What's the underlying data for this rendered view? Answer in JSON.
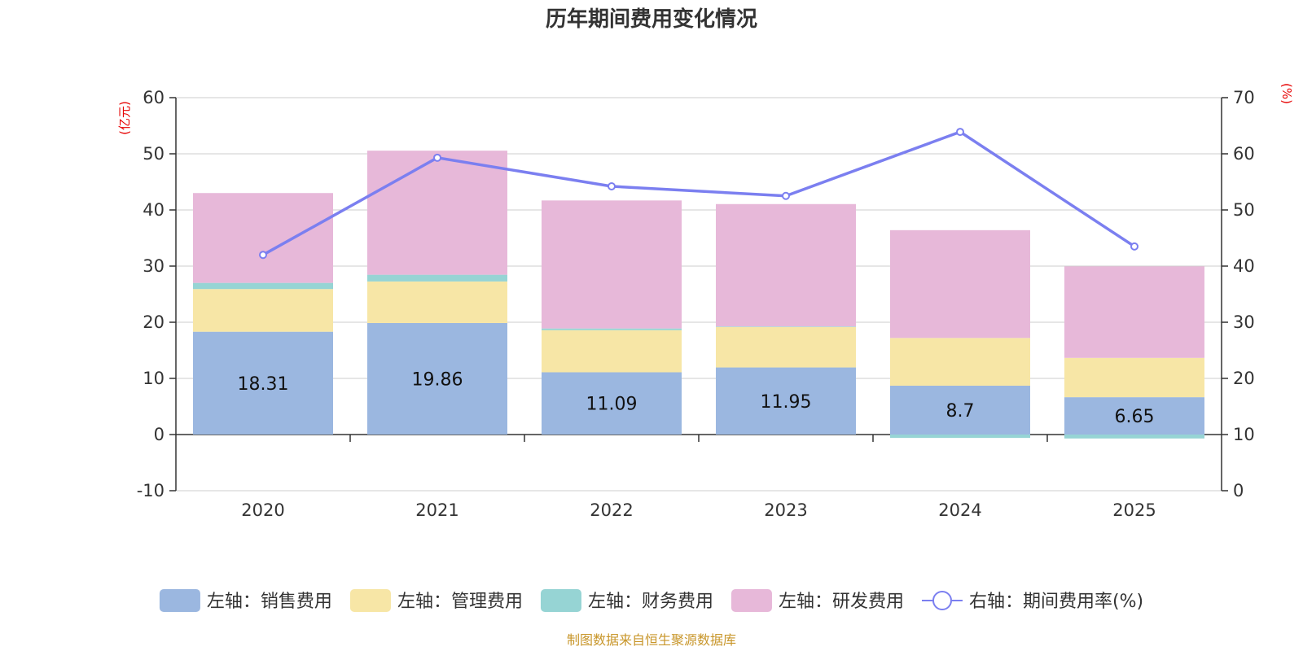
{
  "chart_data": {
    "type": "bar",
    "stacked": true,
    "title": "历年期间费用变化情况",
    "categories": [
      "2020",
      "2021",
      "2022",
      "2023",
      "2024",
      "2025"
    ],
    "left_axis": {
      "unit": "(亿元)",
      "ylim": [
        -10,
        60
      ],
      "ticks": [
        60,
        50,
        40,
        30,
        20,
        10,
        0,
        -10
      ]
    },
    "right_axis": {
      "unit": "(%)",
      "ylim": [
        0,
        70
      ],
      "ticks": [
        70,
        60,
        50,
        40,
        30,
        20,
        10,
        0
      ]
    },
    "series": [
      {
        "name": "左轴：销售费用",
        "color": "#9bb7e0",
        "axis": "left",
        "values": [
          18.31,
          19.86,
          11.09,
          11.95,
          8.7,
          6.65
        ],
        "show_labels": true
      },
      {
        "name": "左轴：管理费用",
        "color": "#f7e6a6",
        "axis": "left",
        "values": [
          7.6,
          7.4,
          7.5,
          7.2,
          8.5,
          7.0
        ]
      },
      {
        "name": "左轴：财务费用",
        "color": "#96d4d4",
        "axis": "left",
        "values": [
          1.1,
          1.2,
          0.3,
          0.1,
          -0.6,
          -0.7
        ]
      },
      {
        "name": "左轴：研发费用",
        "color": "#e7b8d9",
        "axis": "left",
        "values": [
          16.0,
          22.1,
          22.8,
          21.8,
          19.2,
          16.3
        ]
      }
    ],
    "line_series": {
      "name": "右轴：期间费用率(%)",
      "color": "#7b7ff0",
      "axis": "right",
      "values": [
        42.0,
        59.3,
        54.2,
        52.5,
        63.9,
        43.5
      ]
    }
  },
  "source_text": "制图数据来自恒生聚源数据库"
}
